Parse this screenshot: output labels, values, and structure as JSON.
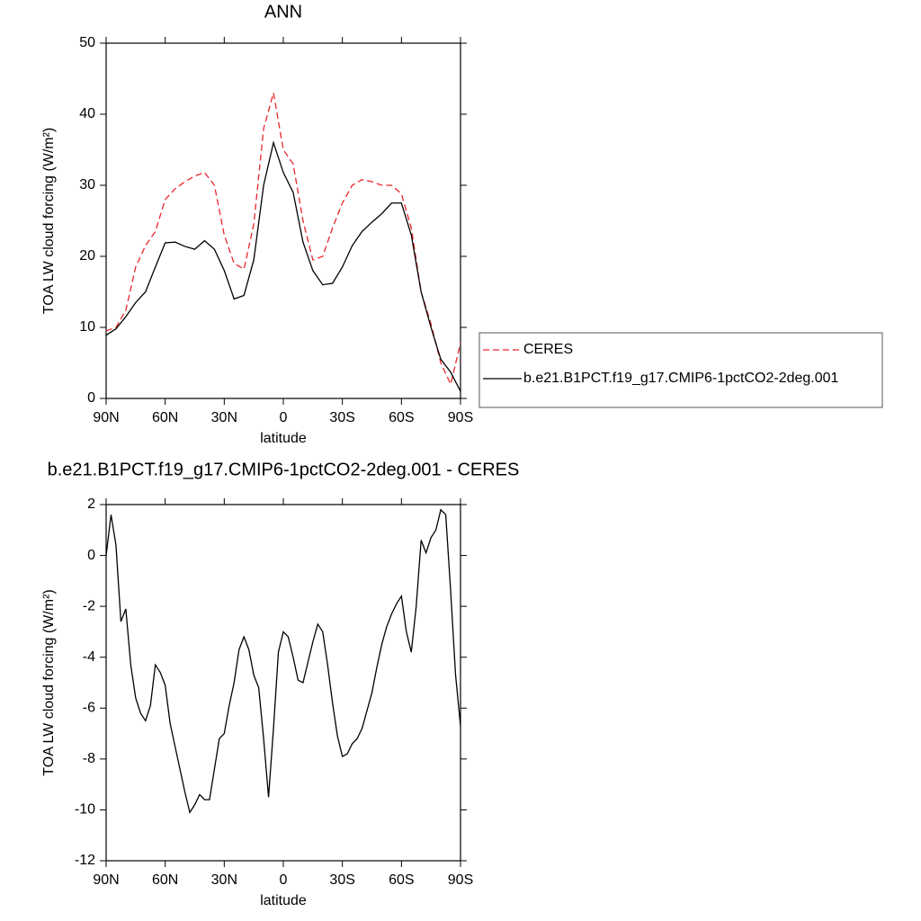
{
  "chart_data": [
    {
      "type": "line",
      "title": "ANN",
      "xlabel": "latitude",
      "ylabel": "TOA LW cloud forcing (W/m²)",
      "x": [
        90,
        85,
        80,
        75,
        70,
        65,
        60,
        55,
        50,
        45,
        40,
        35,
        30,
        25,
        20,
        15,
        10,
        5,
        0,
        -5,
        -10,
        -15,
        -20,
        -25,
        -30,
        -35,
        -40,
        -45,
        -50,
        -55,
        -60,
        -65,
        -70,
        -75,
        -80,
        -85,
        -90
      ],
      "series": [
        {
          "name": "CERES",
          "color": "#e8262b",
          "style": "dashed",
          "values": [
            9.5,
            10,
            12.4,
            18.5,
            21.5,
            23.5,
            28,
            29.5,
            30.5,
            31.3,
            31.8,
            30,
            23,
            19,
            18.2,
            24.5,
            38,
            43,
            35,
            33,
            25,
            19.5,
            20,
            24,
            27.5,
            30,
            30.8,
            30.5,
            30,
            30,
            28.8,
            24,
            15,
            10.5,
            5,
            2,
            7.8
          ]
        },
        {
          "name": "b.e21.B1PCT.f19_g17.CMIP6-1pctCO2-2deg.001",
          "color": "#000000",
          "style": "solid",
          "values": [
            8.9,
            9.8,
            11.5,
            13.5,
            15,
            18.5,
            21.9,
            22,
            21.4,
            21,
            22.2,
            21,
            18,
            14,
            14.5,
            19.5,
            30,
            36,
            31.8,
            29,
            22,
            18,
            16,
            16.2,
            18.5,
            21.5,
            23.5,
            24.8,
            26,
            27.5,
            27.5,
            23,
            15,
            10,
            5.5,
            3.7,
            1
          ]
        }
      ],
      "xlim": [
        90,
        -90
      ],
      "ylim": [
        0,
        50
      ],
      "xticks": [
        {
          "value": 90,
          "label": "90N"
        },
        {
          "value": 60,
          "label": "60N"
        },
        {
          "value": 30,
          "label": "30N"
        },
        0,
        {
          "value": -30,
          "label": "30S"
        },
        {
          "value": -60,
          "label": "60S"
        },
        {
          "value": -90,
          "label": "90S"
        }
      ],
      "yticks": [
        0,
        10,
        20,
        30,
        40,
        50
      ],
      "legend": "right"
    },
    {
      "type": "line",
      "title": "b.e21.B1PCT.f19_g17.CMIP6-1pctCO2-2deg.001 - CERES",
      "xlabel": "latitude",
      "ylabel": "TOA LW cloud forcing (W/m²)",
      "x": [
        90,
        87.5,
        85,
        82.5,
        80,
        77.5,
        75,
        72.5,
        70,
        67.5,
        65,
        62.5,
        60,
        57.5,
        55,
        52.5,
        50,
        47.5,
        45,
        42.5,
        40,
        37.5,
        35,
        32.5,
        30,
        27.5,
        25,
        22.5,
        20,
        17.5,
        15,
        12.5,
        10,
        7.5,
        5,
        2.5,
        0,
        -2.5,
        -5,
        -7.5,
        -10,
        -12.5,
        -15,
        -17.5,
        -20,
        -22.5,
        -25,
        -27.5,
        -30,
        -32.5,
        -35,
        -37.5,
        -40,
        -42.5,
        -45,
        -47.5,
        -50,
        -52.5,
        -55,
        -57.5,
        -60,
        -62.5,
        -65,
        -67.5,
        -70,
        -72.5,
        -75,
        -77.5,
        -80,
        -82.5,
        -85,
        -87.5,
        -90
      ],
      "values": [
        0,
        1.6,
        0.4,
        -2.6,
        -2.1,
        -4.3,
        -5.6,
        -6.2,
        -6.5,
        -5.9,
        -4.3,
        -4.6,
        -5.1,
        -6.6,
        -7.5,
        -8.4,
        -9.3,
        -10.1,
        -9.8,
        -9.4,
        -9.6,
        -9.6,
        -8.4,
        -7.2,
        -7,
        -5.9,
        -5,
        -3.7,
        -3.2,
        -3.7,
        -4.7,
        -5.2,
        -7.2,
        -9.5,
        -6.8,
        -3.8,
        -3,
        -3.2,
        -4,
        -4.9,
        -5,
        -4.2,
        -3.4,
        -2.7,
        -3,
        -4.3,
        -5.8,
        -7.1,
        -7.9,
        -7.8,
        -7.4,
        -7.2,
        -6.8,
        -6.1,
        -5.4,
        -4.4,
        -3.5,
        -2.8,
        -2.3,
        -1.9,
        -1.6,
        -3,
        -3.8,
        -2,
        0.6,
        0.1,
        0.7,
        1,
        1.8,
        1.6,
        -1.4,
        -4.7,
        -6.7
      ],
      "color": "#000000",
      "xlim": [
        90,
        -90
      ],
      "ylim": [
        -12,
        2
      ],
      "xticks": [
        {
          "value": 90,
          "label": "90N"
        },
        {
          "value": 60,
          "label": "60N"
        },
        {
          "value": 30,
          "label": "30N"
        },
        0,
        {
          "value": -30,
          "label": "30S"
        },
        {
          "value": -60,
          "label": "60S"
        },
        {
          "value": -90,
          "label": "90S"
        }
      ],
      "yticks": [
        -12,
        -10,
        -8,
        -6,
        -4,
        -2,
        0,
        2
      ]
    }
  ]
}
